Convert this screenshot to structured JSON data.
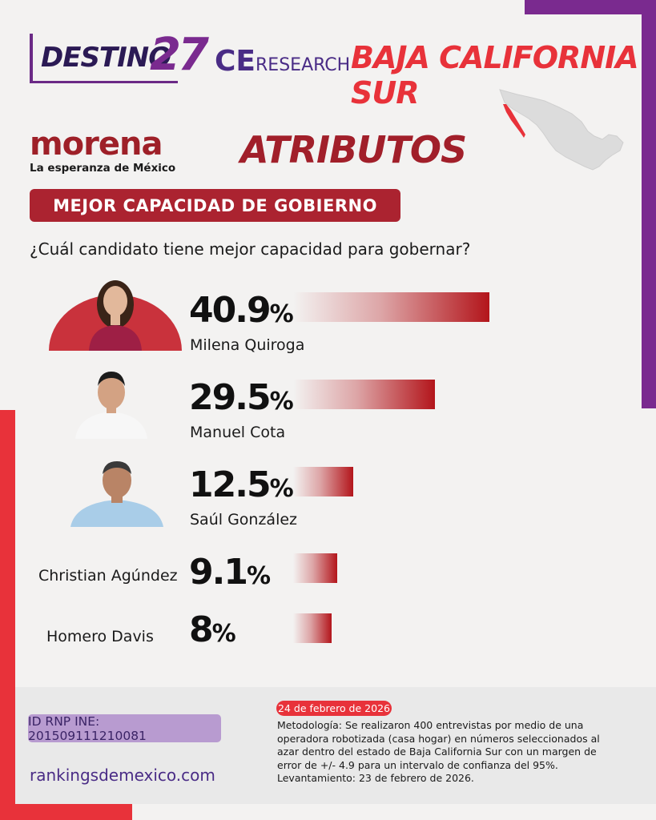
{
  "header": {
    "brand_word": "DESTINO",
    "brand_number": "27",
    "research_ce": "CE",
    "research_word": "RESEARCH",
    "state": "BAJA CALIFORNIA SUR"
  },
  "party": {
    "name": "morena",
    "tagline": "La esperanza de México"
  },
  "section_title": "ATRIBUTOS",
  "banner": "MEJOR CAPACIDAD DE GOBIERNO",
  "question": "¿Cuál candidato tiene mejor capacidad para gobernar?",
  "colors": {
    "accent_red": "#e8323a",
    "dark_red": "#ab2330",
    "purple": "#7a2a8f",
    "bar_red": "#b3151b"
  },
  "chart_data": {
    "type": "bar",
    "categories": [
      "Milena Quiroga",
      "Manuel Cota",
      "Saúl González",
      "Christian Agúndez",
      "Homero Davis"
    ],
    "values": [
      40.9,
      29.5,
      12.5,
      9.1,
      8
    ],
    "labels": [
      "40.9",
      "29.5",
      "12.5",
      "9.1",
      "8"
    ],
    "unit": "%",
    "title": "MEJOR CAPACIDAD DE GOBIERNO",
    "xlabel": "",
    "ylabel": ""
  },
  "footer": {
    "rnp": "ID RNP INE: 201509111210081",
    "site": "rankingsdemexico.com",
    "date": "24 de febrero de 2026",
    "methodology": "Metodología: Se realizaron 400 entrevistas por medio de una operadora robotizada (casa hogar) en números seleccionados al azar dentro del estado de Baja California Sur con un margen de error de +/- 4.9 para un intervalo de confianza del 95%.",
    "fieldwork": "Levantamiento: 23 de febrero de 2026."
  }
}
